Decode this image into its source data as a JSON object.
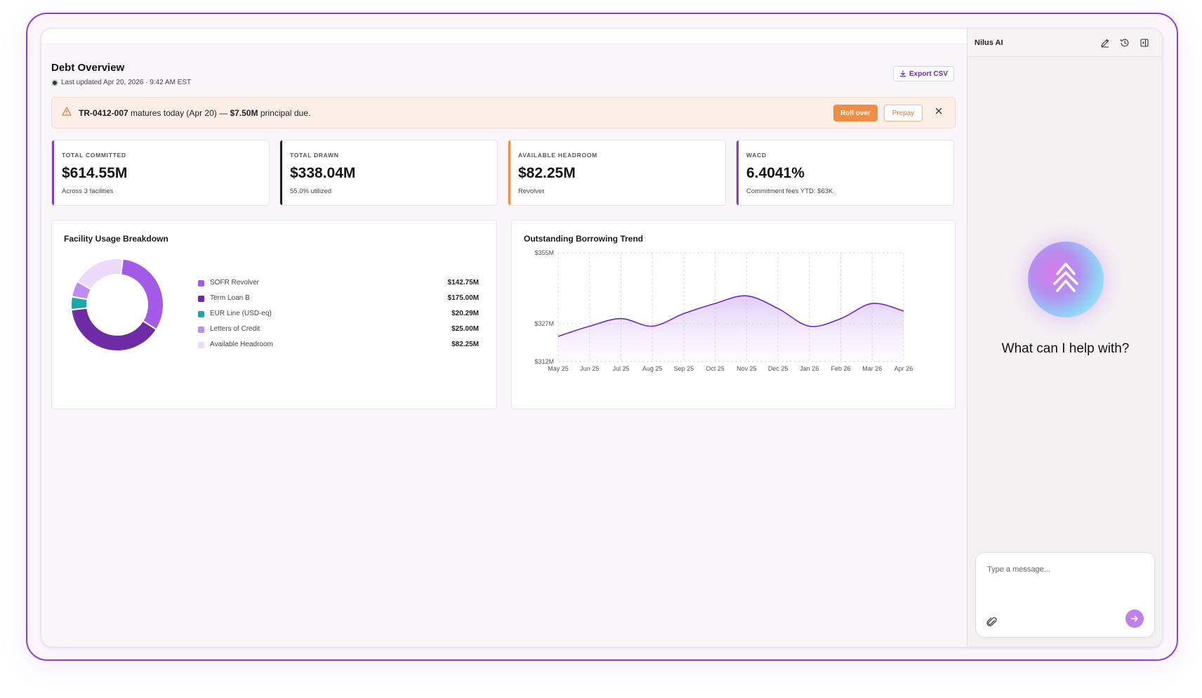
{
  "header": {
    "title": "Debt Overview",
    "last_updated": "Last updated Apr 20, 2026 · 9:42 AM EST",
    "export_label": "Export CSV"
  },
  "alert": {
    "id": "TR-0412-007",
    "message_mid": " matures today (Apr 20) — ",
    "amount": "$7.50M",
    "message_end": " principal due.",
    "rollover_label": "Roll over",
    "prepay_label": "Prepay"
  },
  "kpis": [
    {
      "label": "TOTAL COMMITTED",
      "value": "$614.55M",
      "sub": "Across 3 facilities",
      "color": "#7e3fd1"
    },
    {
      "label": "TOTAL DRAWN",
      "value": "$338.04M",
      "sub": "55.0% utilized",
      "color": "#1f1f1f"
    },
    {
      "label": "AVAILABLE HEADROOM",
      "value": "$82.25M",
      "sub": "Revolver",
      "color": "#ee8d45"
    },
    {
      "label": "WACD",
      "value": "6.4041%",
      "sub": "Commitment fees YTD: $63K",
      "color": "#7e3fd1"
    }
  ],
  "facility_card": {
    "title": "Facility Usage Breakdown",
    "items": [
      {
        "name": "SOFR Revolver",
        "value": "$142.75M",
        "amount": 142.75,
        "color": "#a35ae6"
      },
      {
        "name": "Term Loan B",
        "value": "$175.00M",
        "amount": 175.0,
        "color": "#6f2aa6"
      },
      {
        "name": "EUR Line (USD-eq)",
        "value": "$20.29M",
        "amount": 20.29,
        "color": "#1fa4a8"
      },
      {
        "name": "Letters of Credit",
        "value": "$25.00M",
        "amount": 25.0,
        "color": "#c08cf0"
      },
      {
        "name": "Available Headroom",
        "value": "$82.25M",
        "amount": 82.25,
        "color": "#ebdafb"
      }
    ]
  },
  "trend_card": {
    "title": "Outstanding Borrowing Trend"
  },
  "chart_data": {
    "type": "area",
    "title": "Outstanding Borrowing Trend",
    "xlabel": "",
    "ylabel": "",
    "x": [
      "May 25",
      "Jun 25",
      "Jul 25",
      "Aug 25",
      "Sep 25",
      "Oct 25",
      "Nov 25",
      "Dec 25",
      "Jan 26",
      "Feb 26",
      "Mar 26",
      "Apr 26"
    ],
    "y_ticks": [
      "$355M",
      "$327M",
      "$312M"
    ],
    "y_tick_values": [
      355,
      327,
      312
    ],
    "ylim": [
      312,
      355
    ],
    "grid": true,
    "series": [
      {
        "values": [
          322,
          326,
          329,
          326,
          331,
          335,
          338,
          333,
          326,
          329,
          335,
          332
        ]
      }
    ],
    "color": "#6d28c9"
  },
  "chat": {
    "title": "Nilus AI",
    "help": "What can I help with?",
    "placeholder": "Type a message..."
  }
}
